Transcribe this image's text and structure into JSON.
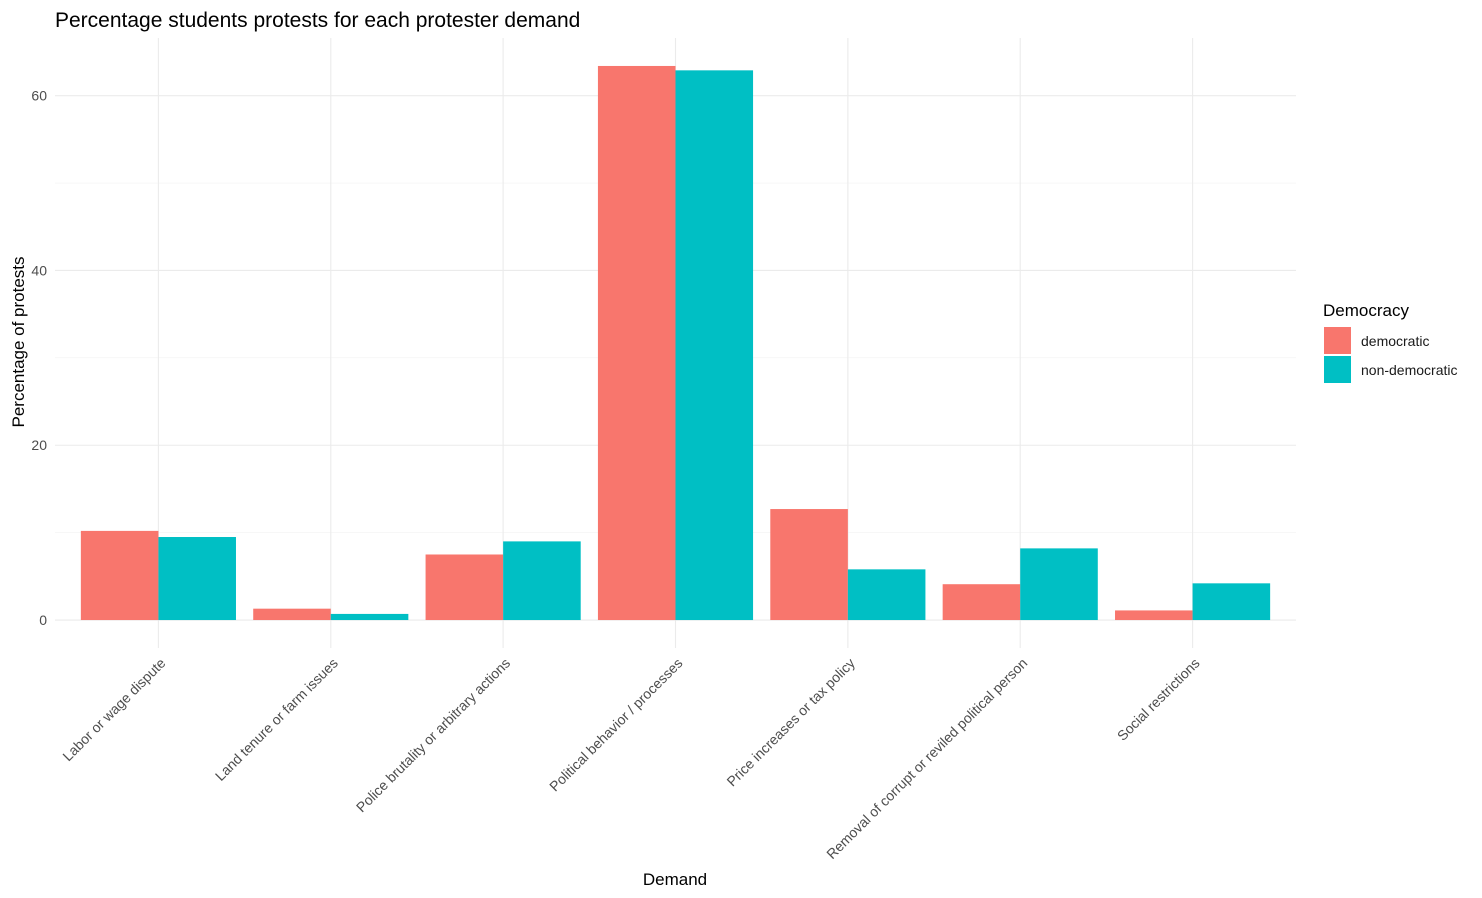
{
  "chart_data": {
    "type": "bar",
    "title": "Percentage students protests for each protester demand",
    "xlabel": "Demand",
    "ylabel": "Percentage of protests",
    "ylim": [
      -3.2,
      66.6
    ],
    "yticks": [
      0,
      20,
      40,
      60
    ],
    "grid": true,
    "legend": {
      "title": "Democracy",
      "position": "right"
    },
    "categories": [
      "Labor or wage dispute",
      "Land tenure or farm issues",
      "Police brutality or arbitrary actions",
      "Political behavior / processes",
      "Price increases or tax policy",
      "Removal of corrupt or reviled political person",
      "Social restrictions"
    ],
    "series": [
      {
        "name": "democratic",
        "color": "#F8766D",
        "values": [
          10.2,
          1.3,
          7.5,
          63.4,
          12.7,
          4.1,
          1.1
        ]
      },
      {
        "name": "non-democratic",
        "color": "#00BFC4",
        "values": [
          9.5,
          0.7,
          9.0,
          62.9,
          5.8,
          8.2,
          4.2
        ]
      }
    ]
  }
}
